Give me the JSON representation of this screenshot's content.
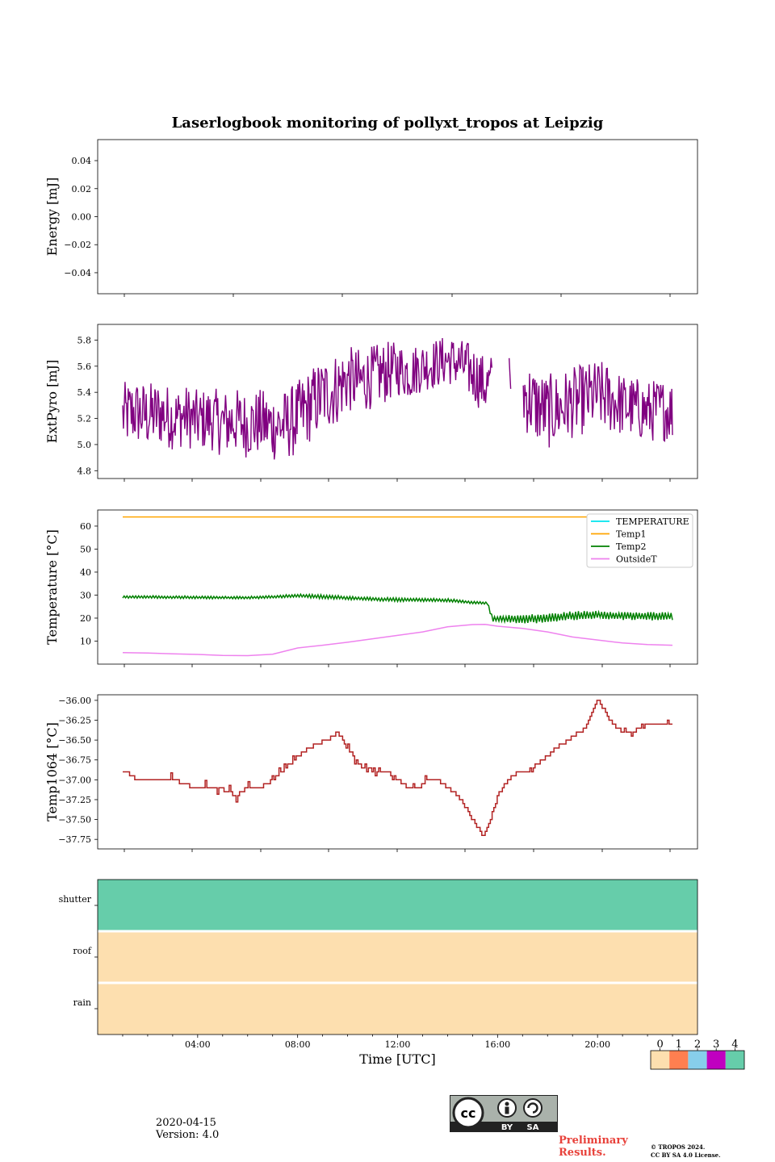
{
  "chart_data": [
    {
      "type": "line",
      "title": "Laserlogbook monitoring of pollyxt_tropos at Leipzig",
      "ylabel": "Energy [mJ]",
      "ylim": [
        -0.055,
        0.055
      ],
      "yticks": [
        -0.04,
        -0.02,
        0.0,
        0.02,
        0.04
      ],
      "ytick_labels": [
        "−0.04",
        "−0.02",
        "0.00",
        "0.02",
        "0.04"
      ],
      "series": []
    },
    {
      "type": "line",
      "ylabel": "ExtPyro [mJ]",
      "ylim": [
        4.74,
        5.92
      ],
      "yticks": [
        4.8,
        5.0,
        5.2,
        5.4,
        5.6,
        5.8
      ],
      "ytick_labels": [
        "4.8",
        "5.0",
        "5.2",
        "5.4",
        "5.6",
        "5.8"
      ],
      "series": [
        {
          "name": "ExtPyro",
          "color": "#800080",
          "x": [
            1.0,
            1.5,
            2.0,
            2.5,
            3.0,
            3.5,
            4.0,
            4.5,
            5.0,
            5.5,
            6.0,
            6.5,
            7.0,
            7.5,
            8.0,
            8.5,
            9.0,
            9.5,
            10.0,
            10.5,
            11.0,
            11.5,
            12.0,
            12.5,
            13.0,
            13.5,
            14.0,
            14.5,
            15.0,
            15.5,
            16.0,
            16.5,
            17.0,
            17.5,
            18.0,
            18.5,
            19.0,
            19.5,
            20.0,
            20.5,
            21.0,
            21.5,
            22.0,
            22.5,
            23.0
          ],
          "values": [
            5.22,
            5.25,
            5.22,
            5.24,
            5.2,
            5.22,
            5.18,
            5.2,
            5.16,
            5.18,
            5.15,
            5.17,
            5.14,
            5.15,
            5.2,
            5.3,
            5.38,
            5.42,
            5.5,
            5.48,
            5.52,
            5.55,
            5.58,
            5.55,
            5.6,
            5.62,
            5.65,
            5.62,
            5.55,
            5.45,
            5.48,
            5.5,
            5.4,
            5.3,
            5.25,
            5.28,
            5.32,
            5.35,
            5.38,
            5.35,
            5.3,
            5.28,
            5.25,
            5.27,
            5.26
          ],
          "amplitude": [
            0.16,
            0.16,
            0.16,
            0.16,
            0.15,
            0.15,
            0.15,
            0.15,
            0.16,
            0.16,
            0.16,
            0.16,
            0.17,
            0.17,
            0.18,
            0.18,
            0.18,
            0.18,
            0.16,
            0.16,
            0.15,
            0.15,
            0.13,
            0.13,
            0.12,
            0.12,
            0.12,
            0.12,
            0.14,
            0.14,
            0.15,
            0.15,
            0.18,
            0.18,
            0.18,
            0.18,
            0.17,
            0.17,
            0.17,
            0.17,
            0.15,
            0.15,
            0.15,
            0.15,
            0.15
          ],
          "gaps": [
            [
              15.8,
              17.0
            ]
          ]
        }
      ]
    },
    {
      "type": "line",
      "ylabel": "Temperature [°C]",
      "ylim": [
        0,
        67
      ],
      "yticks": [
        10,
        20,
        30,
        40,
        50,
        60
      ],
      "ytick_labels": [
        "10",
        "20",
        "30",
        "40",
        "50",
        "60"
      ],
      "legend": {
        "loc": "top-right",
        "entries": [
          "TEMPERATURE",
          "Temp1",
          "Temp2",
          "OutsideT"
        ]
      },
      "series": [
        {
          "name": "TEMPERATURE",
          "color": "#00e5ee",
          "x": [],
          "values": []
        },
        {
          "name": "Temp1",
          "color": "#ffa500",
          "x": [
            1,
            23
          ],
          "values": [
            64,
            64
          ]
        },
        {
          "name": "Temp2",
          "color": "#008000",
          "x": [
            1,
            2,
            3,
            4,
            5,
            6,
            7,
            8,
            8.5,
            9,
            10,
            11,
            12,
            13,
            14,
            15,
            15.6,
            15.8,
            16.2,
            17,
            18,
            19,
            20,
            21,
            22,
            23
          ],
          "values": [
            29.2,
            29.2,
            29.1,
            29.0,
            28.9,
            28.9,
            29.2,
            29.8,
            29.5,
            29.3,
            28.8,
            28.3,
            28.0,
            27.9,
            27.8,
            26.8,
            26.5,
            19.5,
            19.8,
            19.5,
            20.0,
            21.0,
            21.5,
            21.0,
            20.8,
            20.8
          ],
          "amplitude": [
            0.6,
            0.6,
            0.6,
            0.6,
            0.6,
            0.6,
            0.6,
            0.7,
            0.8,
            0.9,
            0.8,
            0.8,
            0.8,
            0.7,
            0.7,
            0.6,
            0.5,
            1.2,
            1.5,
            2.0,
            2.0,
            2.0,
            1.8,
            1.8,
            1.8,
            1.8
          ]
        },
        {
          "name": "OutsideT",
          "color": "#ee82ee",
          "x": [
            1,
            2,
            3,
            4,
            5,
            6,
            7,
            8,
            9,
            10,
            11,
            12,
            13,
            14,
            15,
            15.5,
            16,
            17,
            18,
            19,
            20,
            21,
            22,
            23
          ],
          "values": [
            5,
            4.8,
            4.5,
            4.2,
            3.8,
            3.7,
            4.3,
            7,
            8.2,
            9.5,
            11,
            12.5,
            14,
            16.2,
            17.2,
            17.3,
            16.5,
            15.5,
            14,
            11.8,
            10.5,
            9.2,
            8.5,
            8.2
          ]
        }
      ]
    },
    {
      "type": "line",
      "ylabel": "Temp1064 [°C]",
      "ylim": [
        -37.87,
        -35.93
      ],
      "yticks": [
        -37.75,
        -37.5,
        -37.25,
        -37.0,
        -36.75,
        -36.5,
        -36.25,
        -36.0
      ],
      "ytick_labels": [
        "−37.75",
        "−37.50",
        "−37.25",
        "−37.00",
        "−36.75",
        "−36.50",
        "−36.25",
        "−36.00"
      ],
      "series": [
        {
          "name": "Temp1064",
          "color": "#b22222",
          "x": [
            1,
            1.6,
            2.7,
            3,
            3.9,
            4.9,
            5.5,
            6,
            6.2,
            6.5,
            7,
            7.3,
            7.5,
            7.7,
            8.0,
            8.4,
            8.8,
            9.2,
            9.6,
            10,
            10.4,
            10.8,
            11.2,
            11.6,
            12,
            12.4,
            12.8,
            13.2,
            13.6,
            14,
            14.4,
            14.8,
            15,
            15.2,
            15.4,
            15.6,
            15.8,
            16,
            16.4,
            16.8,
            17.2,
            17.6,
            18,
            18.4,
            18.8,
            19.2,
            19.6,
            19.8,
            20,
            20.2,
            20.4,
            20.6,
            21,
            21.4,
            21.8,
            22.2,
            22.6,
            23
          ],
          "values": [
            -36.9,
            -37.0,
            -37.0,
            -37.0,
            -37.1,
            -37.1,
            -37.2,
            -37.1,
            -37.1,
            -37.1,
            -37.0,
            -36.9,
            -36.85,
            -36.8,
            -36.7,
            -36.6,
            -36.55,
            -36.5,
            -36.4,
            -36.6,
            -36.8,
            -36.9,
            -36.9,
            -36.9,
            -37.0,
            -37.1,
            -37.1,
            -37.0,
            -37.0,
            -37.1,
            -37.2,
            -37.4,
            -37.5,
            -37.6,
            -37.7,
            -37.6,
            -37.4,
            -37.2,
            -37.0,
            -36.9,
            -36.9,
            -36.8,
            -36.7,
            -36.6,
            -36.5,
            -36.4,
            -36.3,
            -36.1,
            -36.0,
            -36.1,
            -36.2,
            -36.3,
            -36.4,
            -36.4,
            -36.3,
            -36.3,
            -36.3,
            -36.3
          ],
          "amplitude": [
            0.05,
            0.05,
            0.05,
            0.1,
            0.1,
            0.08,
            0.08,
            0.08,
            0.05,
            0.05,
            0.05,
            0.05,
            0.05,
            0.05,
            0.05,
            0.05,
            0.05,
            0.05,
            0.05,
            0.05,
            0.05,
            0.05,
            0.05,
            0.05,
            0.05,
            0.05,
            0.05,
            0.05,
            0.05,
            0.05,
            0.05,
            0.05,
            0.05,
            0.05,
            0.05,
            0.05,
            0.05,
            0.05,
            0.05,
            0.05,
            0.05,
            0.05,
            0.05,
            0.05,
            0.05,
            0.05,
            0.05,
            0.05,
            0.05,
            0.05,
            0.05,
            0.05,
            0.05,
            0.05,
            0.05,
            0.05,
            0.05,
            0.05
          ]
        }
      ]
    },
    {
      "type": "heatmap",
      "xlabel": "Time [UTC]",
      "xlim": [
        0,
        24
      ],
      "xticks": [
        4,
        8,
        12,
        16,
        20
      ],
      "xtick_labels": [
        "04:00",
        "08:00",
        "12:00",
        "16:00",
        "20:00"
      ],
      "rows": [
        "shutter",
        "roof",
        "rain"
      ],
      "row_values": [
        4,
        0,
        0
      ],
      "colorbar": {
        "ticks": [
          "0",
          "1",
          "2",
          "3",
          "4"
        ],
        "colors": [
          "#fddfaf",
          "#ff7f50",
          "#87ceeb",
          "#c000c0",
          "#66cdaa"
        ]
      }
    }
  ],
  "footer": {
    "date": "2020-04-15",
    "version": "Version: 4.0",
    "preliminary_line1": "Preliminary",
    "preliminary_line2": "Results.",
    "copyright_line1": "© TROPOS 2024.",
    "copyright_line2": "CC BY SA 4.0 License.",
    "license_badge": {
      "cc": "cc",
      "by": "BY",
      "sa": "SA"
    }
  }
}
